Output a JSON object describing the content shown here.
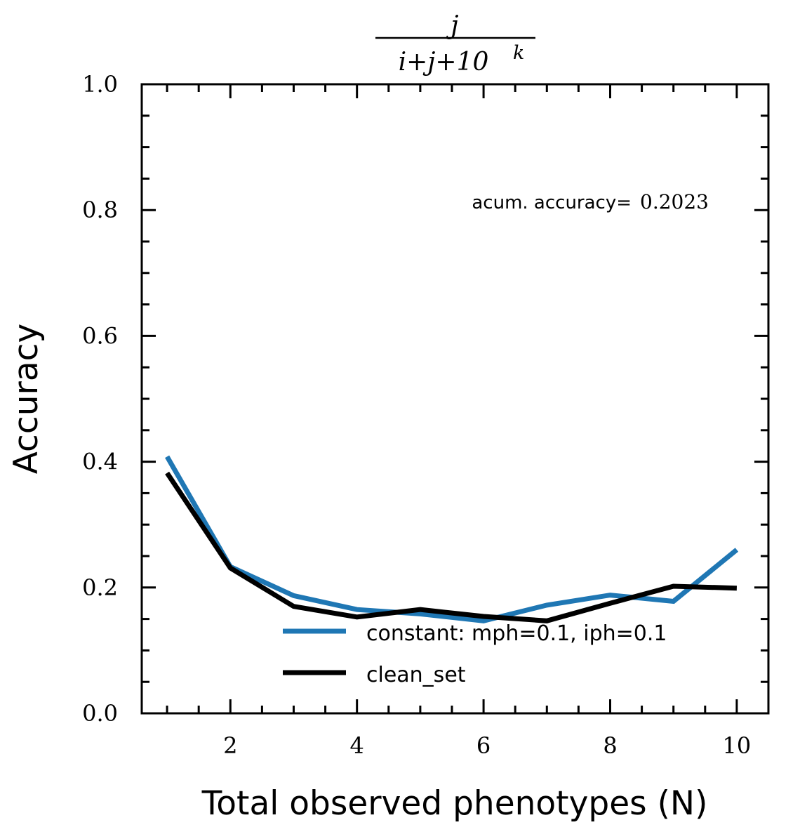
{
  "chart_data": {
    "type": "line",
    "title": {
      "numerator": "j",
      "denominator_base": "i+j+10",
      "denominator_exponent": "k"
    },
    "xlabel": "Total observed phenotypes (N)",
    "ylabel": "Accuracy",
    "xlim": [
      0.6,
      10.5
    ],
    "ylim": [
      0.0,
      1.0
    ],
    "x_ticks": [
      2,
      4,
      6,
      8,
      10
    ],
    "x_tick_labels": [
      "2",
      "4",
      "6",
      "8",
      "10"
    ],
    "y_ticks": [
      0.0,
      0.2,
      0.4,
      0.6,
      0.8,
      1.0
    ],
    "y_tick_labels": [
      "0.0",
      "0.2",
      "0.4",
      "0.6",
      "0.8",
      "1.0"
    ],
    "grid": false,
    "legend_position": "lower-right",
    "annotation": {
      "label": "acum. accuracy=",
      "value": "0.2023"
    },
    "x": [
      1,
      2,
      3,
      4,
      5,
      6,
      7,
      8,
      9,
      10
    ],
    "series": [
      {
        "name": "constant: mph=0.1, iph=0.1",
        "color": "#1f77b4",
        "values": [
          0.408,
          0.233,
          0.187,
          0.165,
          0.158,
          0.147,
          0.172,
          0.188,
          0.178,
          0.26
        ]
      },
      {
        "name": "clean_set",
        "color": "#000000",
        "values": [
          0.382,
          0.231,
          0.17,
          0.153,
          0.165,
          0.154,
          0.147,
          0.175,
          0.202,
          0.199
        ]
      }
    ]
  }
}
